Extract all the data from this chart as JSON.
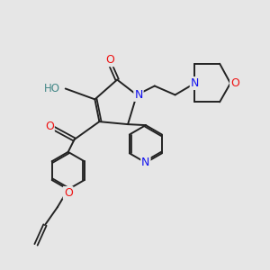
{
  "background_color": "#e6e6e6",
  "bond_color": "#222222",
  "atom_colors": {
    "O": "#ee1111",
    "N": "#1111ee",
    "C": "#222222",
    "H": "#448888"
  },
  "figsize": [
    3.0,
    3.0
  ],
  "dpi": 100
}
